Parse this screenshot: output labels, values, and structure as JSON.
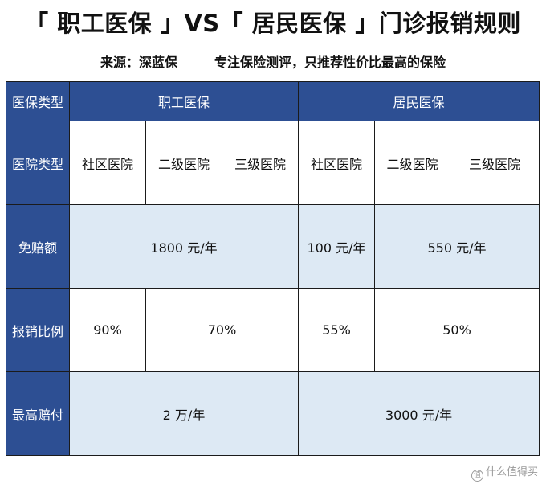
{
  "title": "「 职工医保 」VS「 居民医保 」门诊报销规则",
  "subtitle": {
    "source": "来源：深蓝保",
    "slogan": "专注保险测评，只推荐性价比最高的保险"
  },
  "table": {
    "row_labels": {
      "insurance_type": "医保类型",
      "hospital_type": "医院类型",
      "deductible": "免赔额",
      "reimbursement_ratio": "报销比例",
      "max_payout": "最高赔付"
    },
    "insurance_types": {
      "employee": "职工医保",
      "resident": "居民医保"
    },
    "hospital_types": {
      "employee": [
        "社区医院",
        "二级医院",
        "三级医院"
      ],
      "resident": [
        "社区医院",
        "二级医院",
        "三级医院"
      ]
    },
    "deductible": {
      "employee": "1800 元/年",
      "resident_community": "100 元/年",
      "resident_other": "550 元/年"
    },
    "reimbursement_ratio": {
      "employee_community": "90%",
      "employee_other": "70%",
      "resident_community": "55%",
      "resident_other": "50%"
    },
    "max_payout": {
      "employee": "2 万/年",
      "resident": "3000 元/年"
    }
  },
  "watermark": {
    "icon": "value-icon",
    "text": "什么值得买"
  }
}
